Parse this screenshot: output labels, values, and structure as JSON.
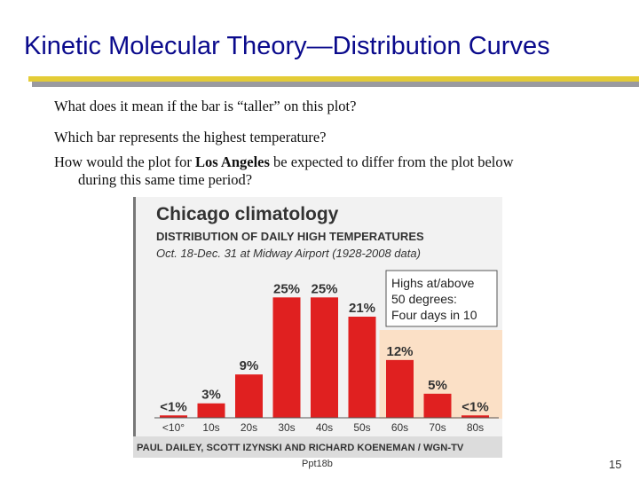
{
  "slide": {
    "title": "Kinetic Molecular Theory—Distribution Curves",
    "q1": "What does it mean if the bar is “taller” on this plot?",
    "q2": "Which bar represents the highest temperature?",
    "q3_pre": "How would the plot for ",
    "q3_bold": "Los Angeles",
    "q3_post": " be expected to differ from the plot below",
    "q3_line2": "during this same time period?",
    "footer": "Ppt18b",
    "page_number": "15"
  },
  "chart_data": {
    "type": "bar",
    "title": "Chicago climatology",
    "subtitle": "DISTRIBUTION OF DAILY HIGH TEMPERATURES",
    "subtitle2": "Oct. 18-Dec. 31 at Midway Airport (1928-2008 data)",
    "categories": [
      "<10°",
      "10s",
      "20s",
      "30s",
      "40s",
      "50s",
      "60s",
      "70s",
      "80s"
    ],
    "value_labels": [
      "<1%",
      "3%",
      "9%",
      "25%",
      "25%",
      "21%",
      "12%",
      "5%",
      "<1%"
    ],
    "values": [
      0.5,
      3,
      9,
      25,
      25,
      21,
      12,
      5,
      0.5
    ],
    "ylim": [
      0,
      28
    ],
    "annotation": [
      "Highs at/above",
      "50 degrees:",
      "Four days in 10"
    ],
    "credit": "PAUL DAILEY, SCOTT IZYNSKI AND RICHARD KOENEMAN / WGN-TV",
    "colors": {
      "bar": "#e02020",
      "title": "#333333",
      "highlight": "#fbe0c6",
      "bg": "#f2f2f2",
      "credit_bg": "#dcdcdc"
    }
  }
}
